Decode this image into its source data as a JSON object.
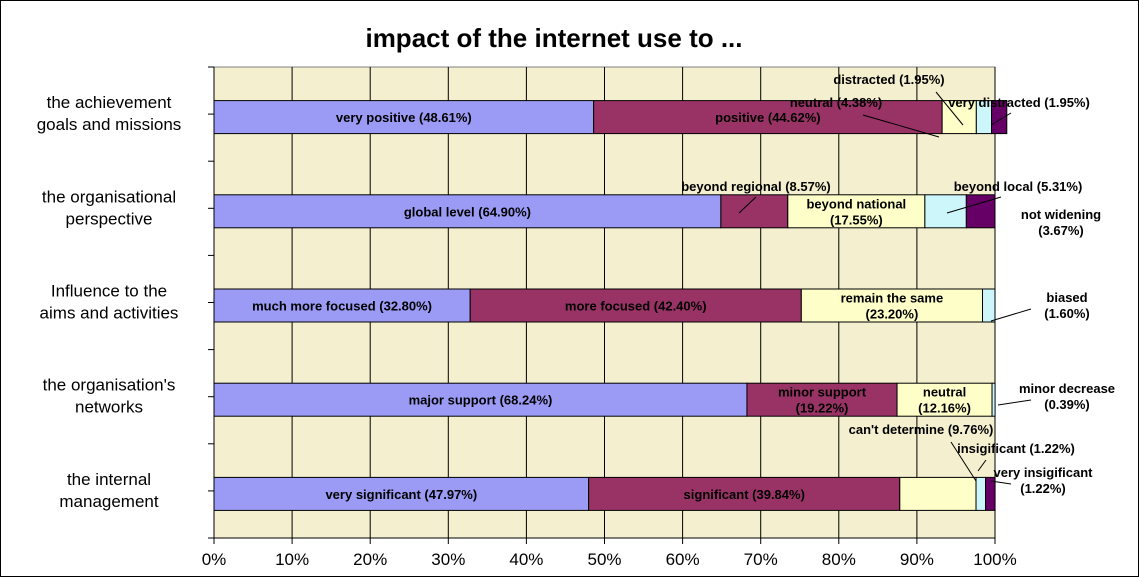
{
  "chart_data": {
    "type": "bar",
    "orientation": "horizontal",
    "stacked": "percent",
    "title": "impact of the internet use to ...",
    "xlabel": "",
    "ylabel": "",
    "xlim": [
      0,
      100
    ],
    "x_ticks": [
      "0%",
      "10%",
      "20%",
      "30%",
      "40%",
      "50%",
      "60%",
      "70%",
      "80%",
      "90%",
      "100%"
    ],
    "grid": true,
    "plot_background": "#f3efcf",
    "categories": [
      {
        "label": [
          "the achievement",
          "goals and missions"
        ],
        "segments": [
          {
            "name": "very positive",
            "value": 48.61,
            "color": "#9b9bf5",
            "label": [
              "very positive (48.61%)"
            ]
          },
          {
            "name": "positive",
            "value": 44.62,
            "color": "#993366",
            "label": [
              "positive (44.62%)"
            ]
          },
          {
            "name": "neutral",
            "value": 4.38,
            "color": "#fefec8",
            "label": [
              "neutral (4.38%)"
            ]
          },
          {
            "name": "distracted",
            "value": 1.95,
            "color": "#cdf6fb",
            "label": [
              "distracted (1.95%)"
            ]
          },
          {
            "name": "very distracted",
            "value": 1.95,
            "color": "#660066",
            "label": [
              "very distracted (1.95%)"
            ]
          }
        ]
      },
      {
        "label": [
          "the organisational",
          "perspective"
        ],
        "segments": [
          {
            "name": "global level",
            "value": 64.9,
            "color": "#9b9bf5",
            "label": [
              "global level (64.90%)"
            ]
          },
          {
            "name": "beyond regional",
            "value": 8.57,
            "color": "#993366",
            "label": [
              "beyond regional (8.57%)"
            ]
          },
          {
            "name": "beyond national",
            "value": 17.55,
            "color": "#fefec8",
            "label": [
              "beyond national",
              "(17.55%)"
            ]
          },
          {
            "name": "beyond local",
            "value": 5.31,
            "color": "#cdf6fb",
            "label": [
              "beyond local (5.31%)"
            ]
          },
          {
            "name": "not widening",
            "value": 3.67,
            "color": "#660066",
            "label": [
              "not widening",
              "(3.67%)"
            ]
          }
        ]
      },
      {
        "label": [
          "Influence to the",
          "aims and activities"
        ],
        "segments": [
          {
            "name": "much more focused",
            "value": 32.8,
            "color": "#9b9bf5",
            "label": [
              "much more focused (32.80%)"
            ]
          },
          {
            "name": "more focused",
            "value": 42.4,
            "color": "#993366",
            "label": [
              "more focused (42.40%)"
            ]
          },
          {
            "name": "remain the same",
            "value": 23.2,
            "color": "#fefec8",
            "label": [
              "remain the same",
              "(23.20%)"
            ]
          },
          {
            "name": "biased",
            "value": 1.6,
            "color": "#cdf6fb",
            "label": [
              "biased",
              "(1.60%)"
            ]
          }
        ]
      },
      {
        "label": [
          "the organisation's",
          "networks"
        ],
        "segments": [
          {
            "name": "major support",
            "value": 68.24,
            "color": "#9b9bf5",
            "label": [
              "major support (68.24%)"
            ]
          },
          {
            "name": "minor support",
            "value": 19.22,
            "color": "#993366",
            "label": [
              "minor support",
              "(19.22%)"
            ]
          },
          {
            "name": "neutral",
            "value": 12.16,
            "color": "#fefec8",
            "label": [
              "neutral",
              "(12.16%)"
            ]
          },
          {
            "name": "minor decrease",
            "value": 0.39,
            "color": "#cdf6fb",
            "label": [
              "minor decrease",
              "(0.39%)"
            ]
          }
        ]
      },
      {
        "label": [
          "the internal",
          "management"
        ],
        "segments": [
          {
            "name": "very significant",
            "value": 47.97,
            "color": "#9b9bf5",
            "label": [
              "very significant (47.97%)"
            ]
          },
          {
            "name": "significant",
            "value": 39.84,
            "color": "#993366",
            "label": [
              "significant (39.84%)"
            ]
          },
          {
            "name": "can't determine",
            "value": 9.76,
            "color": "#fefec8",
            "label": [
              "can't determine (9.76%)"
            ]
          },
          {
            "name": "insigificant",
            "value": 1.22,
            "color": "#cdf6fb",
            "label": [
              "insigificant (1.22%)"
            ]
          },
          {
            "name": "very insigificant",
            "value": 1.22,
            "color": "#660066",
            "label": [
              "very insigificant",
              "(1.22%)"
            ]
          }
        ]
      }
    ]
  }
}
